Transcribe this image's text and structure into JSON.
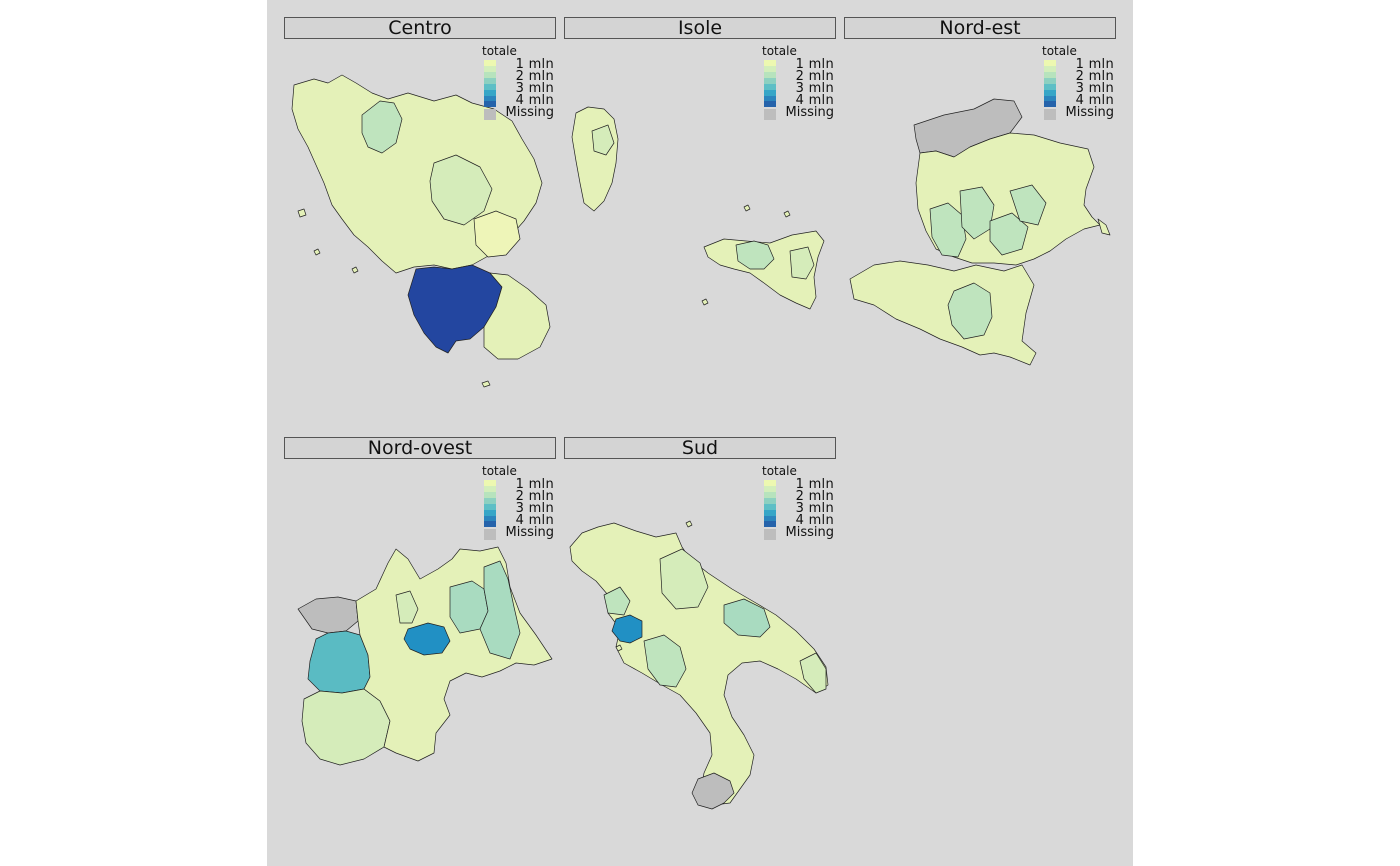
{
  "legend": {
    "title": "totale",
    "breaks": [
      "1 mln",
      "2 mln",
      "3 mln",
      "4 mln"
    ],
    "missing_label": "Missing",
    "ramp_colors": [
      "#edf8b1",
      "#d3eebb",
      "#b7e3bd",
      "#8dd1c1",
      "#5ebfc6",
      "#36a6c7",
      "#2b85bd",
      "#2563ab"
    ],
    "missing_color": "#bdbdbd"
  },
  "panels": [
    {
      "key": "centro",
      "title": "Centro"
    },
    {
      "key": "isole",
      "title": "Isole"
    },
    {
      "key": "nordest",
      "title": "Nord-est"
    },
    {
      "key": "nordovest",
      "title": "Nord-ovest"
    },
    {
      "key": "sud",
      "title": "Sud"
    }
  ],
  "palette": {
    "very_low": "#eef5b8",
    "low": "#e4f1b8",
    "mid_low": "#d5ecba",
    "mid": "#bfe4be",
    "mid_high": "#a9dbc0",
    "teal": "#5abbc3",
    "blue": "#2190c4",
    "dark_blue": "#2346a0",
    "missing": "#bdbdbd",
    "background": "#d9d9d9",
    "strip": "#d4d4d4"
  }
}
